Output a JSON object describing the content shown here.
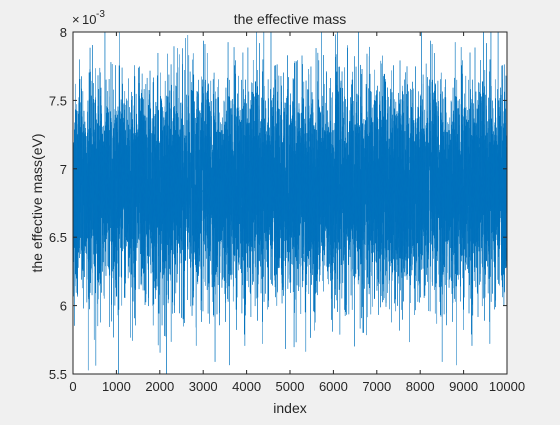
{
  "chart_data": {
    "type": "line",
    "title": "the effective mass",
    "xlabel": "index",
    "ylabel": "the effective mass(eV)",
    "y_exponent_label": "10",
    "y_exponent_power": "-3",
    "xlim": [
      0,
      10000
    ],
    "ylim": [
      5.5,
      8
    ],
    "xticks": [
      0,
      1000,
      2000,
      3000,
      4000,
      5000,
      6000,
      7000,
      8000,
      9000,
      10000
    ],
    "yticks": [
      5.5,
      6,
      6.5,
      7,
      7.5,
      8
    ],
    "x_tick_labels": [
      "0",
      "1000",
      "2000",
      "3000",
      "4000",
      "5000",
      "6000",
      "7000",
      "8000",
      "9000",
      "10000"
    ],
    "y_tick_labels": [
      "5.5",
      "6",
      "6.5",
      "7",
      "7.5",
      "8"
    ],
    "grid": false,
    "series": [
      {
        "color": "#0072bd",
        "n_points": 10000,
        "mean": 6.85,
        "std": 0.38,
        "min": 5.5,
        "max": 8.0,
        "x_range": [
          1,
          10000
        ]
      }
    ]
  },
  "colors": {
    "background": "#f0f0f0",
    "axes_background": "#ffffff",
    "axis_color": "#262626",
    "series_color": "#0072bd"
  }
}
